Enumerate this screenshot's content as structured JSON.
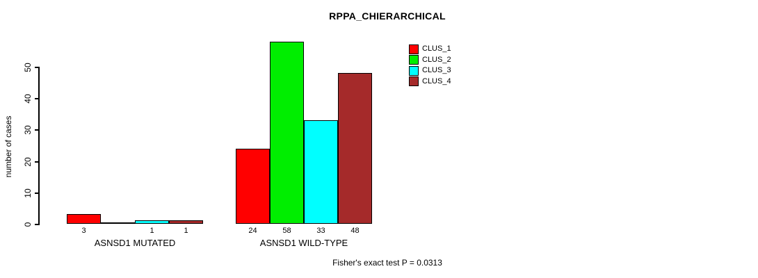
{
  "chart_data": {
    "type": "bar",
    "title": "RPPA_CHIERARCHICAL",
    "ylabel": "number of cases",
    "xlabel": "",
    "ylim": [
      0,
      58
    ],
    "y_ticks": [
      0,
      10,
      20,
      30,
      40,
      50
    ],
    "categories": [
      "ASNSD1 MUTATED",
      "ASNSD1 WILD-TYPE"
    ],
    "series": [
      {
        "name": "CLUS_1",
        "color": "#ff0000",
        "values": [
          3,
          24
        ]
      },
      {
        "name": "CLUS_2",
        "color": "#00ee00",
        "values": [
          0,
          58
        ]
      },
      {
        "name": "CLUS_3",
        "color": "#00ffff",
        "values": [
          1,
          33
        ]
      },
      {
        "name": "CLUS_4",
        "color": "#a52a2a",
        "values": [
          1,
          48
        ]
      }
    ],
    "bar_value_labels": [
      [
        "3",
        "",
        "1",
        "1"
      ],
      [
        "24",
        "58",
        "33",
        "48"
      ]
    ],
    "annotation": "Fisher's exact test P = 0.0313",
    "legend_position": "top-right",
    "grid": false,
    "bar_outline_color": "#000000",
    "axis_color": "#000000",
    "background_color": "#ffffff"
  }
}
